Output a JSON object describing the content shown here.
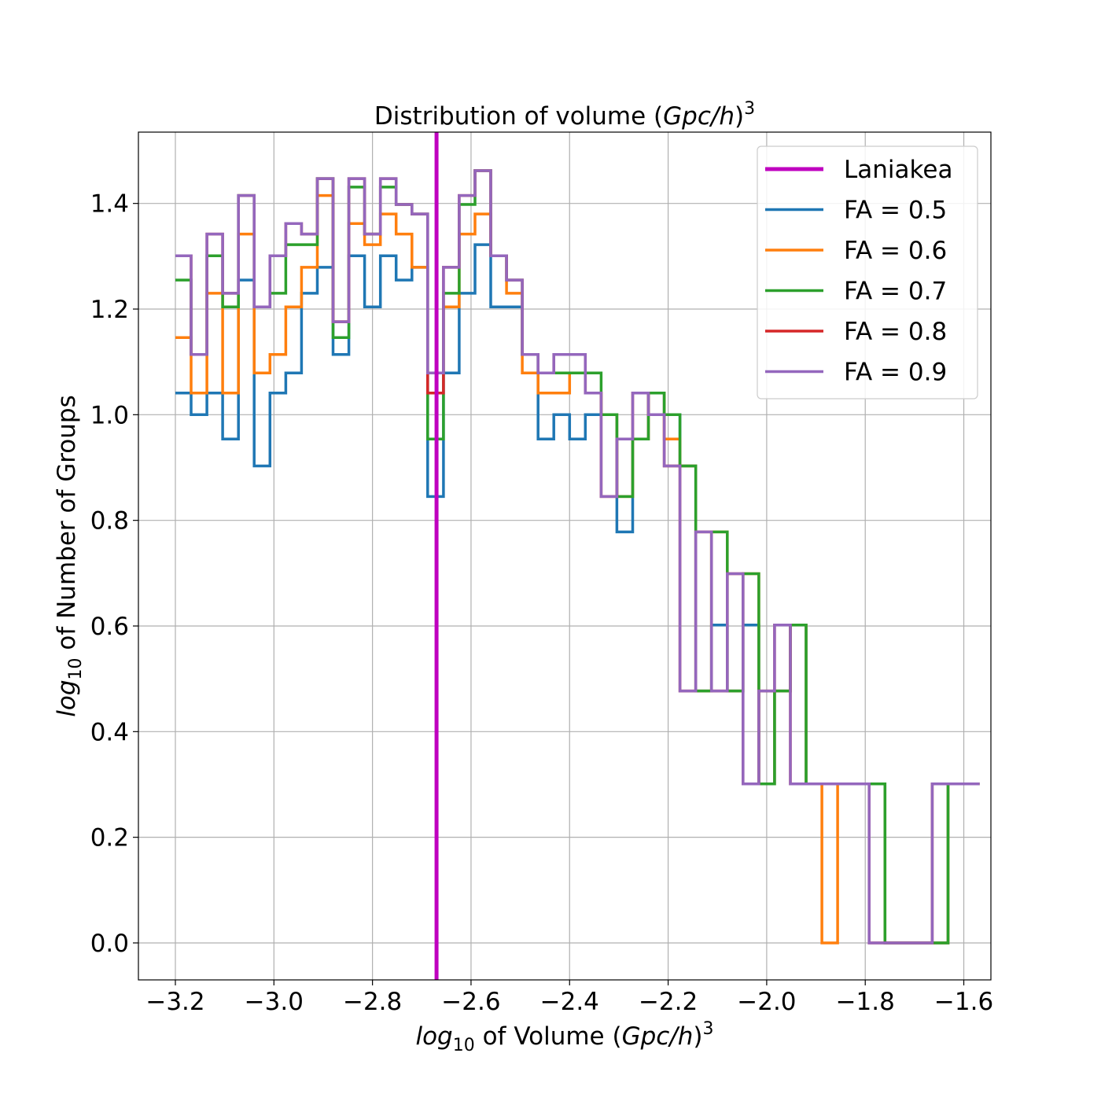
{
  "chart_data": {
    "type": "line",
    "title": {
      "prefix": "Distribution of volume (",
      "italic": "Gpc/h",
      "suffix": ")",
      "sup": "3"
    },
    "xlabel": {
      "italic_pre": "log",
      "sub": "10",
      "mid": " of Volume (",
      "italic": "Gpc/h",
      "suffix": ")",
      "sup": "3"
    },
    "ylabel": {
      "italic_pre": "log",
      "sub": "10",
      "mid": " of Number of Groups"
    },
    "xlim": [
      -3.275,
      -1.545
    ],
    "ylim": [
      -0.07,
      1.535
    ],
    "xticks": [
      -3.2,
      -3.0,
      -2.8,
      -2.6,
      -2.4,
      -2.2,
      -2.0,
      -1.8,
      -1.6
    ],
    "xtick_labels": [
      "−3.2",
      "−3.0",
      "−2.8",
      "−2.6",
      "−2.4",
      "−2.2",
      "−2.0",
      "−1.8",
      "−1.6"
    ],
    "yticks": [
      0.0,
      0.2,
      0.4,
      0.6,
      0.8,
      1.0,
      1.2,
      1.4
    ],
    "ytick_labels": [
      "0.0",
      "0.2",
      "0.4",
      "0.6",
      "0.8",
      "1.0",
      "1.2",
      "1.4"
    ],
    "grid": true,
    "legend_position": "top-right",
    "bin_start": -3.2,
    "bin_width": 0.032,
    "reference_line": {
      "name": "Laniakea",
      "x": -2.67,
      "color": "#bf00bf"
    },
    "series": [
      {
        "name": "FA = 0.5",
        "color": "#1f77b4",
        "values": [
          1.041,
          1.0,
          1.041,
          0.954,
          1.255,
          0.903,
          1.041,
          1.079,
          1.23,
          1.279,
          1.114,
          1.301,
          1.204,
          1.301,
          1.255,
          1.279,
          0.845,
          1.079,
          1.23,
          1.322,
          1.204,
          1.204,
          1.114,
          0.954,
          1.0,
          0.954,
          1.0,
          1.0,
          0.778,
          0.954,
          1.041,
          1.0,
          0.903,
          0.477,
          0.602,
          0.477,
          0.602,
          0.301,
          0.477,
          0.602,
          0.301,
          0.301,
          0.301,
          0.301,
          0.301,
          0.0,
          0.0,
          0.0,
          0.0,
          0.301,
          0.301
        ]
      },
      {
        "name": "FA = 0.6",
        "color": "#ff7f0e",
        "values": [
          1.146,
          1.041,
          1.23,
          1.041,
          1.342,
          1.079,
          1.114,
          1.204,
          1.279,
          1.415,
          1.176,
          1.362,
          1.322,
          1.38,
          1.342,
          1.279,
          1.079,
          1.204,
          1.342,
          1.38,
          1.301,
          1.23,
          1.079,
          1.041,
          1.041,
          1.079,
          1.041,
          1.0,
          0.845,
          0.954,
          1.041,
          0.954,
          0.903,
          0.477,
          0.778,
          0.477,
          0.699,
          0.301,
          0.477,
          0.602,
          0.301,
          0.0,
          0.301,
          0.301,
          0.301,
          0.0,
          0.0,
          0.0,
          0.0,
          0.301,
          0.301
        ]
      },
      {
        "name": "FA = 0.7",
        "color": "#2ca02c",
        "values": [
          1.255,
          1.114,
          1.301,
          1.204,
          1.415,
          1.204,
          1.23,
          1.322,
          1.322,
          1.447,
          1.146,
          1.431,
          1.342,
          1.431,
          1.398,
          1.38,
          0.954,
          1.23,
          1.398,
          1.462,
          1.301,
          1.255,
          1.114,
          1.079,
          1.079,
          1.079,
          1.079,
          1.0,
          0.845,
          0.954,
          1.041,
          1.0,
          0.903,
          0.477,
          0.778,
          0.477,
          0.699,
          0.301,
          0.477,
          0.602,
          0.301,
          0.301,
          0.301,
          0.301,
          0.301,
          0.0,
          0.0,
          0.0,
          0.0,
          0.301,
          0.301
        ]
      },
      {
        "name": "FA = 0.8",
        "color": "#d62728",
        "values": [
          1.301,
          1.114,
          1.342,
          1.23,
          1.415,
          1.204,
          1.301,
          1.362,
          1.342,
          1.447,
          1.176,
          1.447,
          1.342,
          1.447,
          1.398,
          1.38,
          1.041,
          1.279,
          1.415,
          1.462,
          1.301,
          1.255,
          1.114,
          1.079,
          1.114,
          1.114,
          1.041,
          0.845,
          0.954,
          1.041,
          1.0,
          0.903,
          0.477,
          0.778,
          0.477,
          0.699,
          0.301,
          0.477,
          0.602,
          0.301,
          0.301,
          0.301,
          0.301,
          0.301,
          0.0,
          0.0,
          0.0,
          0.0,
          0.301,
          0.301,
          0.301
        ]
      },
      {
        "name": "FA = 0.9",
        "color": "#9467bd",
        "values": [
          1.301,
          1.114,
          1.342,
          1.23,
          1.415,
          1.204,
          1.301,
          1.362,
          1.342,
          1.447,
          1.176,
          1.447,
          1.342,
          1.447,
          1.398,
          1.38,
          1.079,
          1.279,
          1.415,
          1.462,
          1.301,
          1.255,
          1.114,
          1.079,
          1.114,
          1.114,
          1.041,
          0.845,
          0.954,
          1.041,
          1.0,
          0.903,
          0.477,
          0.778,
          0.477,
          0.699,
          0.301,
          0.477,
          0.602,
          0.301,
          0.301,
          0.301,
          0.301,
          0.301,
          0.0,
          0.0,
          0.0,
          0.0,
          0.301,
          0.301,
          0.301
        ]
      }
    ]
  }
}
